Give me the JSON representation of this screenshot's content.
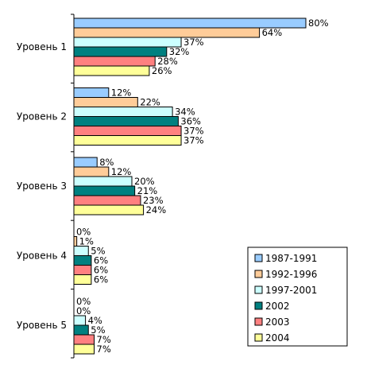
{
  "chart_data": {
    "type": "bar",
    "orientation": "horizontal",
    "title": "",
    "xlabel": "",
    "ylabel": "",
    "xlim": [
      0,
      80
    ],
    "grid": false,
    "legend_position": "bottom-right",
    "categories": [
      "Уровень 1",
      "Уровень 2",
      "Уровень 3",
      "Уровень 4",
      "Уровень 5"
    ],
    "series": [
      {
        "name": "1987-1991",
        "color": "#99ccff",
        "values": [
          80,
          12,
          8,
          0,
          0
        ]
      },
      {
        "name": "1992-1996",
        "color": "#ffcc99",
        "values": [
          64,
          22,
          12,
          1,
          0
        ]
      },
      {
        "name": "1997-2001",
        "color": "#ccffff",
        "values": [
          37,
          34,
          20,
          5,
          4
        ]
      },
      {
        "name": "2002",
        "color": "#008080",
        "values": [
          32,
          36,
          21,
          6,
          5
        ]
      },
      {
        "name": "2003",
        "color": "#ff8080",
        "values": [
          28,
          37,
          23,
          6,
          7
        ]
      },
      {
        "name": "2004",
        "color": "#ffff99",
        "values": [
          26,
          37,
          24,
          6,
          7
        ]
      }
    ],
    "value_suffix": "%"
  }
}
